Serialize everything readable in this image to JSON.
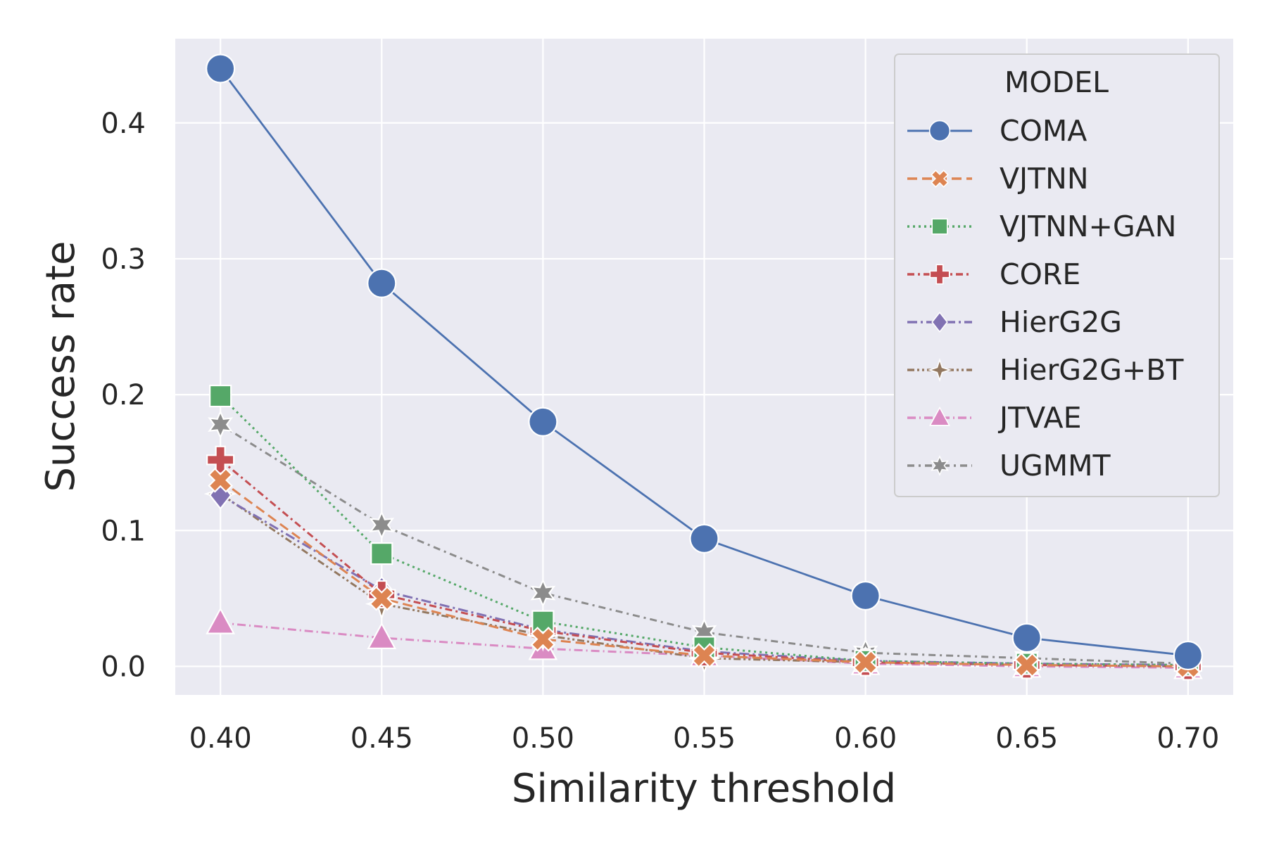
{
  "chart_data": {
    "type": "line",
    "xlabel": "Similarity threshold",
    "ylabel": "Success rate",
    "x": [
      0.4,
      0.45,
      0.5,
      0.55,
      0.6,
      0.65,
      0.7
    ],
    "x_tick_labels": [
      "0.40",
      "0.45",
      "0.50",
      "0.55",
      "0.60",
      "0.65",
      "0.70"
    ],
    "y_ticks": [
      0.0,
      0.1,
      0.2,
      0.3,
      0.4
    ],
    "y_tick_labels": [
      "0.0",
      "0.1",
      "0.2",
      "0.3",
      "0.4"
    ],
    "xlim": [
      0.386,
      0.714
    ],
    "ylim": [
      -0.021,
      0.462
    ],
    "grid": true,
    "legend": {
      "title": "MODEL",
      "placement": "top-right"
    },
    "series": [
      {
        "name": "COMA",
        "color": "#4c72b0",
        "dash": "solid",
        "marker": "circle",
        "values": [
          0.44,
          0.282,
          0.18,
          0.094,
          0.052,
          0.021,
          0.008
        ]
      },
      {
        "name": "VJTNN",
        "color": "#dd8452",
        "dash": "dashed",
        "marker": "x-filled",
        "values": [
          0.137,
          0.05,
          0.02,
          0.008,
          0.003,
          0.001,
          0.0
        ]
      },
      {
        "name": "VJTNN+GAN",
        "color": "#55a868",
        "dash": "dotted",
        "marker": "square",
        "values": [
          0.199,
          0.083,
          0.033,
          0.014,
          0.004,
          0.002,
          0.001
        ]
      },
      {
        "name": "CORE",
        "color": "#c44e52",
        "dash": "dashdot",
        "marker": "plus-filled",
        "values": [
          0.152,
          0.053,
          0.026,
          0.01,
          0.003,
          0.001,
          0.0
        ]
      },
      {
        "name": "HierG2G",
        "color": "#8172b3",
        "dash": "dashdot2",
        "marker": "diamond",
        "values": [
          0.126,
          0.056,
          0.027,
          0.011,
          0.004,
          0.002,
          0.001
        ]
      },
      {
        "name": "HierG2G+BT",
        "color": "#937860",
        "dash": "dashdotdot",
        "marker": "star4",
        "values": [
          0.127,
          0.046,
          0.023,
          0.006,
          0.003,
          0.001,
          0.0
        ]
      },
      {
        "name": "JTVAE",
        "color": "#da8bc3",
        "dash": "dashdot3",
        "marker": "triangle",
        "values": [
          0.032,
          0.021,
          0.013,
          0.008,
          0.002,
          0.0,
          -0.001
        ]
      },
      {
        "name": "UGMMT",
        "color": "#8c8c8c",
        "dash": "dashdot4",
        "marker": "star6",
        "values": [
          0.178,
          0.104,
          0.054,
          0.025,
          0.01,
          0.006,
          0.002
        ]
      }
    ]
  }
}
